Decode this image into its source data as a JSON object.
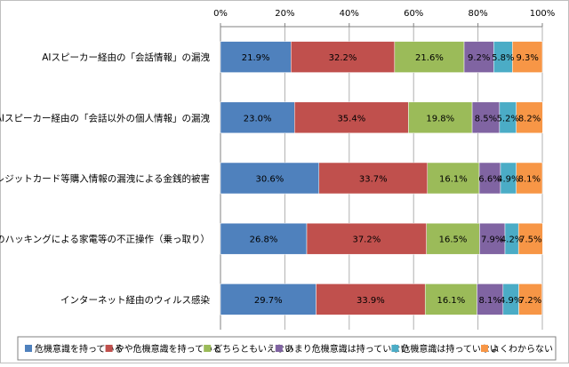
{
  "chart_data": {
    "type": "bar",
    "orientation": "horizontal",
    "stacked": true,
    "percent": true,
    "x_ticks": [
      "0%",
      "20%",
      "40%",
      "60%",
      "80%",
      "100%"
    ],
    "xlim": [
      0,
      100
    ],
    "grid": true,
    "legend_position": "bottom",
    "categories": [
      "AIスピーカー経由の「会話情報」の漏洩",
      "AIスピーカー経由の「会話以外の個人情報」の漏洩",
      "クレジットカード等購入情報の漏洩による金銭的被害",
      "外部からのハッキングによる家電等の不正操作（乗っ取り）",
      "インターネット経由のウィルス感染"
    ],
    "series": [
      {
        "name": "危機意識を持っている",
        "color": "#4f81bd",
        "values": [
          21.9,
          23.0,
          30.6,
          26.8,
          29.7
        ],
        "labels": [
          "21.9%",
          "23.0%",
          "30.6%",
          "26.8%",
          "29.7%"
        ]
      },
      {
        "name": "やや危機意識を持っている",
        "color": "#c0504d",
        "values": [
          32.2,
          35.4,
          33.7,
          37.2,
          33.9
        ],
        "labels": [
          "32.2%",
          "35.4%",
          "33.7%",
          "37.2%",
          "33.9%"
        ]
      },
      {
        "name": "どちらともいえない",
        "color": "#9bbb59",
        "values": [
          21.6,
          19.8,
          16.1,
          16.5,
          16.1
        ],
        "labels": [
          "21.6%",
          "19.8%",
          "16.1%",
          "16.5%",
          "16.1%"
        ]
      },
      {
        "name": "あまり危機意識は持っていない",
        "color": "#8064a2",
        "values": [
          9.2,
          8.5,
          6.6,
          7.9,
          8.1
        ],
        "labels": [
          "9.2%",
          "8.5%",
          "6.6%",
          "7.9%",
          "8.1%"
        ]
      },
      {
        "name": "危機意識は持っていない",
        "color": "#4bacc6",
        "values": [
          5.8,
          5.2,
          4.9,
          4.2,
          4.9
        ],
        "labels": [
          "5.8%",
          "5.2%",
          "4.9%",
          "4.2%",
          "4.9%"
        ]
      },
      {
        "name": "よくわからない",
        "color": "#f79646",
        "values": [
          9.3,
          8.2,
          8.1,
          7.5,
          7.2
        ],
        "labels": [
          "9.3%",
          "8.2%",
          "8.1%",
          "7.5%",
          "7.2%"
        ]
      }
    ]
  }
}
